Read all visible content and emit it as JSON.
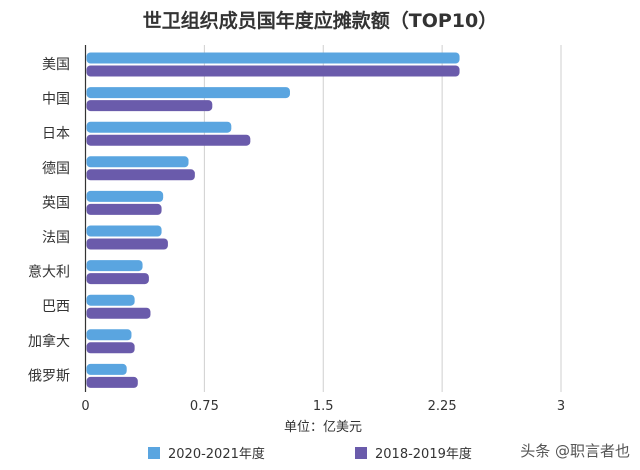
{
  "chart_data": {
    "type": "bar",
    "orientation": "horizontal",
    "title": "世卫组织成员国年度应摊款额（TOP10）",
    "xlabel": "单位：亿美元",
    "ylabel": "",
    "xlim": [
      0,
      3
    ],
    "xticks": [
      "0",
      "0.75",
      "1.5",
      "2.25",
      "3"
    ],
    "grid": "vertical",
    "legend_position": "bottom",
    "categories": [
      "美国",
      "中国",
      "日本",
      "德国",
      "英国",
      "法国",
      "意大利",
      "巴西",
      "加拿大",
      "俄罗斯"
    ],
    "series": [
      {
        "name": "2020-2021年度",
        "color": "#5aa5e0",
        "values": [
          2.36,
          1.29,
          0.92,
          0.65,
          0.49,
          0.48,
          0.36,
          0.31,
          0.29,
          0.26
        ]
      },
      {
        "name": "2018-2019年度",
        "color": "#6a5bab",
        "values": [
          2.36,
          0.8,
          1.04,
          0.69,
          0.48,
          0.52,
          0.4,
          0.41,
          0.31,
          0.33
        ]
      }
    ]
  },
  "watermark": "头条 @职言者也"
}
